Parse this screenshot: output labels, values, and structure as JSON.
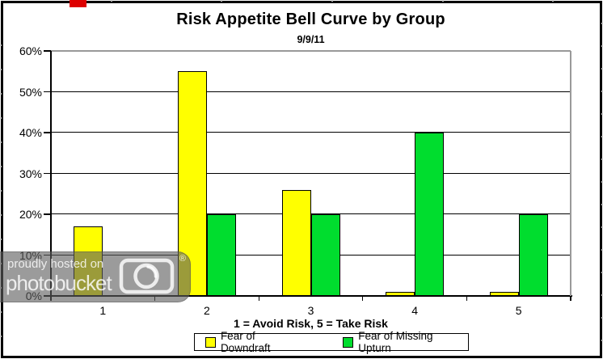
{
  "chart_data": {
    "type": "bar",
    "title": "Risk Appetite Bell Curve by Group",
    "subtitle": "9/9/11",
    "xlabel": "1 = Avoid Risk, 5 = Take Risk",
    "ylabel": "",
    "categories": [
      "1",
      "2",
      "3",
      "4",
      "5"
    ],
    "series": [
      {
        "name": "Fear of Downdraft",
        "color": "#FFFF00",
        "values": [
          17,
          55,
          26,
          1,
          1
        ]
      },
      {
        "name": "Fear of Missing Upturn",
        "color": "#00DD2E",
        "values": [
          0,
          20,
          20,
          40,
          20
        ]
      }
    ],
    "ylim": [
      0,
      60
    ],
    "ytick_step": 10,
    "ytick_labels": [
      "0%",
      "10%",
      "20%",
      "30%",
      "40%",
      "50%",
      "60%"
    ],
    "grid": true,
    "gridline_color": "#000000",
    "top_border_color": "#999999",
    "plot_right_border_color": "#999999",
    "legend_position": "bottom"
  },
  "watermark": {
    "line1": "proudly hosted on",
    "line2": "photobucket",
    "registered_symbol": "®",
    "camera_icon": "camera-icon",
    "background": "#5d5d5d"
  },
  "frame": {
    "border_color": "#000000",
    "red_marker_color": "#dd0000",
    "edge_tick_color": "#bfbfbf"
  }
}
